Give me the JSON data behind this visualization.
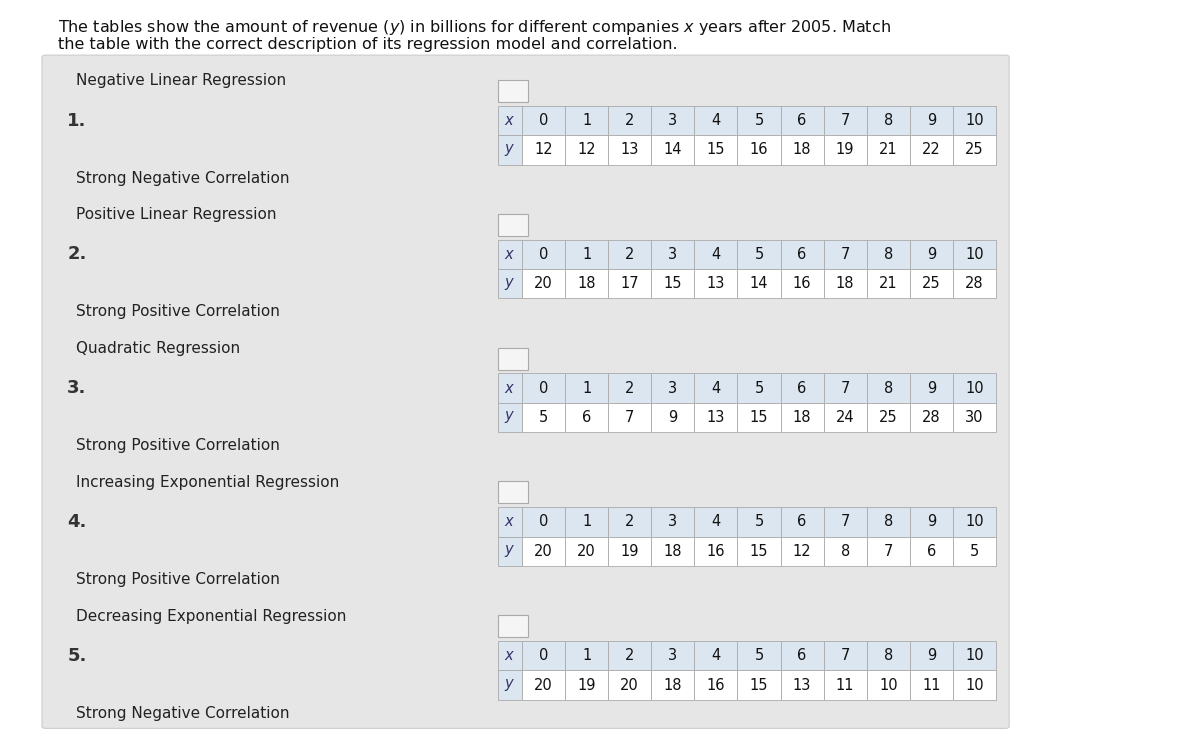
{
  "title_line1": "The tables show the amount of revenue (y) in billions for different companies x years after 2005. Match",
  "title_line2": "the table with the correct description of its regression model and correlation.",
  "bg_color": "#e6e6e6",
  "page_bg": "#ffffff",
  "sections": [
    {
      "number": "1.",
      "label1": "Negative Linear Regression",
      "label2": "Strong Negative Correlation",
      "x_vals": [
        "0",
        "1",
        "2",
        "3",
        "4",
        "5",
        "6",
        "7",
        "8",
        "9",
        "10"
      ],
      "y_vals": [
        "12",
        "12",
        "13",
        "14",
        "15",
        "16",
        "18",
        "19",
        "21",
        "22",
        "25"
      ]
    },
    {
      "number": "2.",
      "label1": "Positive Linear Regression",
      "label2": "Strong Positive Correlation",
      "x_vals": [
        "0",
        "1",
        "2",
        "3",
        "4",
        "5",
        "6",
        "7",
        "8",
        "9",
        "10"
      ],
      "y_vals": [
        "20",
        "18",
        "17",
        "15",
        "13",
        "14",
        "16",
        "18",
        "21",
        "25",
        "28"
      ]
    },
    {
      "number": "3.",
      "label1": "Quadratic Regression",
      "label2": "Strong Positive Correlation",
      "x_vals": [
        "0",
        "1",
        "2",
        "3",
        "4",
        "5",
        "6",
        "7",
        "8",
        "9",
        "10"
      ],
      "y_vals": [
        "5",
        "6",
        "7",
        "9",
        "13",
        "15",
        "18",
        "24",
        "25",
        "28",
        "30"
      ]
    },
    {
      "number": "4.",
      "label1": "Increasing Exponential Regression",
      "label2": "Strong Positive Correlation",
      "x_vals": [
        "0",
        "1",
        "2",
        "3",
        "4",
        "5",
        "6",
        "7",
        "8",
        "9",
        "10"
      ],
      "y_vals": [
        "20",
        "20",
        "19",
        "18",
        "16",
        "15",
        "12",
        "8",
        "7",
        "6",
        "5"
      ]
    },
    {
      "number": "5.",
      "label1": "Decreasing Exponential Regression",
      "label2": "Strong Negative Correlation",
      "x_vals": [
        "0",
        "1",
        "2",
        "3",
        "4",
        "5",
        "6",
        "7",
        "8",
        "9",
        "10"
      ],
      "y_vals": [
        "20",
        "19",
        "20",
        "18",
        "16",
        "15",
        "13",
        "11",
        "10",
        "11",
        "10"
      ]
    }
  ],
  "table_x_bg": "#dce6f1",
  "table_y_bg": "#dce6f1",
  "table_cell_bg": "#ffffff",
  "table_border_color": "#aaaaaa",
  "checkbox_color": "#f5f5f5",
  "number_fontsize": 13,
  "label_fontsize": 11,
  "table_fontsize": 10.5
}
